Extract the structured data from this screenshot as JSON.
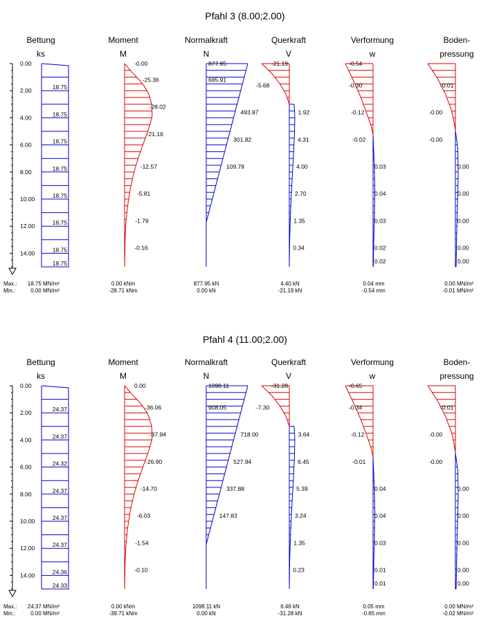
{
  "colors": {
    "red": "#dd0000",
    "blue": "#0000cc",
    "axis": "#000000"
  },
  "depth_ticks": [
    "0.00",
    "2.00",
    "4.00",
    "6.00",
    "8.00",
    "10.00",
    "12.00",
    "14.00"
  ],
  "stat_prefix": {
    "max": "Max.:",
    "min": "Min.:"
  },
  "columns": [
    {
      "id": "bettung",
      "line1": "Bettung",
      "line2": "ks"
    },
    {
      "id": "moment",
      "line1": "Moment",
      "line2": "M"
    },
    {
      "id": "normalkraft",
      "line1": "Normalkraft",
      "line2": "N"
    },
    {
      "id": "querkraft",
      "line1": "Querkraft",
      "line2": "V"
    },
    {
      "id": "verformung",
      "line1": "Verformung",
      "line2": "w"
    },
    {
      "id": "boden",
      "line1": "Boden-",
      "line2": "pressung"
    }
  ],
  "chart_data": [
    {
      "type": "diagram",
      "title": "Pfahl  3 (8.00;2.00)",
      "depth_range": [
        0,
        15
      ],
      "bettung": {
        "labels": [
          [
            "2.00",
            "18.75"
          ],
          [
            "4.00",
            "18.75"
          ],
          [
            "6.00",
            "18.75"
          ],
          [
            "8.00",
            "18.75"
          ],
          [
            "10.00",
            "18.75"
          ],
          [
            "12.00",
            "18.75"
          ],
          [
            "14.00",
            "18.75"
          ],
          [
            "15.00",
            "18.75"
          ]
        ],
        "max": "18.75 MN/m²",
        "min": "0.00 MN/m²"
      },
      "moment": {
        "labels": [
          [
            "0.00",
            "-0.00"
          ],
          [
            "1.20",
            "-25.36"
          ],
          [
            "3.20",
            "-28.02"
          ],
          [
            "5.20",
            "-21.16"
          ],
          [
            "7.60",
            "-12.57"
          ],
          [
            "9.60",
            "-5.81"
          ],
          [
            "11.60",
            "-1.79"
          ],
          [
            "13.60",
            "-0.16"
          ]
        ],
        "max": "0.00 kNm",
        "min": "-28.71 kNm"
      },
      "normalkraft": {
        "labels": [
          [
            "0.00",
            "877.95"
          ],
          [
            "1.20",
            "685.91"
          ],
          [
            "3.60",
            "493.87"
          ],
          [
            "5.60",
            "301.82"
          ],
          [
            "7.60",
            "109.78"
          ]
        ],
        "max": "877.95 kN",
        "min": "0.00 kN"
      },
      "querkraft": {
        "labels": [
          [
            "0.00",
            "-21.19"
          ],
          [
            "1.60",
            "-5.68"
          ],
          [
            "3.60",
            "1.92"
          ],
          [
            "5.60",
            "4.31"
          ],
          [
            "7.60",
            "4.00"
          ],
          [
            "9.60",
            "2.70"
          ],
          [
            "11.60",
            "1.35"
          ],
          [
            "13.60",
            "0.34"
          ]
        ],
        "max": "4.40 kN",
        "min": "-21.19 kN"
      },
      "verformung": {
        "labels": [
          [
            "0.00",
            "-0.54"
          ],
          [
            "1.60",
            "-0.30"
          ],
          [
            "3.60",
            "-0.12"
          ],
          [
            "5.60",
            "-0.02"
          ],
          [
            "7.60",
            "0.03"
          ],
          [
            "9.60",
            "0.04"
          ],
          [
            "11.60",
            "0.03"
          ],
          [
            "13.60",
            "0.02"
          ],
          [
            "14.60",
            "0.02"
          ]
        ],
        "max": "0.04 mm",
        "min": "-0.54 mm"
      },
      "boden": {
        "labels": [
          [
            "1.60",
            "-0.01"
          ],
          [
            "3.60",
            "-0.00"
          ],
          [
            "5.60",
            "-0.00"
          ],
          [
            "7.60",
            "0.00"
          ],
          [
            "9.60",
            "0.00"
          ],
          [
            "11.60",
            "0.00"
          ],
          [
            "13.60",
            "0.00"
          ],
          [
            "14.60",
            "0.00"
          ]
        ],
        "max": "0.00 MN/m²",
        "min": "-0.01 MN/m²"
      }
    },
    {
      "type": "diagram",
      "title": "Pfahl  4 (11.00;2.00)",
      "depth_range": [
        0,
        15
      ],
      "bettung": {
        "labels": [
          [
            "2.00",
            "24.37"
          ],
          [
            "4.00",
            "24.37"
          ],
          [
            "6.00",
            "24.32"
          ],
          [
            "8.00",
            "24.37"
          ],
          [
            "10.00",
            "24.37"
          ],
          [
            "12.00",
            "24.37"
          ],
          [
            "14.00",
            "24.36"
          ],
          [
            "15.00",
            "24.33"
          ]
        ],
        "max": "24.37 MN/m²",
        "min": "0.00 MN/m²"
      },
      "moment": {
        "labels": [
          [
            "0.00",
            "0.00"
          ],
          [
            "1.60",
            "-36.06"
          ],
          [
            "3.60",
            "-37.94"
          ],
          [
            "5.60",
            "-26.90"
          ],
          [
            "7.60",
            "-14.70"
          ],
          [
            "9.60",
            "-6.03"
          ],
          [
            "11.60",
            "-1.54"
          ],
          [
            "13.60",
            "-0.10"
          ]
        ],
        "max": "0.00 kNm",
        "min": "-39.71 kNm"
      },
      "normalkraft": {
        "labels": [
          [
            "0.00",
            "1098.11"
          ],
          [
            "1.60",
            "908.05"
          ],
          [
            "3.60",
            "718.00"
          ],
          [
            "5.60",
            "527.94"
          ],
          [
            "7.60",
            "337.88"
          ],
          [
            "9.60",
            "147.83"
          ]
        ],
        "max": "1098.11 kN",
        "min": "0.00 kN"
      },
      "querkraft": {
        "labels": [
          [
            "0.00",
            "-31.28"
          ],
          [
            "1.60",
            "-7.30"
          ],
          [
            "3.60",
            "3.64"
          ],
          [
            "5.60",
            "6.45"
          ],
          [
            "7.60",
            "5.39"
          ],
          [
            "9.60",
            "3.24"
          ],
          [
            "11.60",
            "1.35"
          ],
          [
            "13.60",
            "0.23"
          ]
        ],
        "max": "6.46 kN",
        "min": "-31.28 kN"
      },
      "verformung": {
        "labels": [
          [
            "0.00",
            "-0.65"
          ],
          [
            "1.60",
            "-0.34"
          ],
          [
            "3.60",
            "-0.12"
          ],
          [
            "5.60",
            "-0.01"
          ],
          [
            "7.60",
            "0.04"
          ],
          [
            "9.60",
            "0.04"
          ],
          [
            "11.60",
            "0.03"
          ],
          [
            "13.60",
            "0.01"
          ],
          [
            "14.60",
            "0.01"
          ]
        ],
        "max": "0.05 mm",
        "min": "-0.65 mm"
      },
      "boden": {
        "labels": [
          [
            "1.60",
            "-0.01"
          ],
          [
            "3.60",
            "-0.00"
          ],
          [
            "5.60",
            "-0.00"
          ],
          [
            "7.60",
            "0.00"
          ],
          [
            "9.60",
            "0.00"
          ],
          [
            "11.60",
            "0.00"
          ],
          [
            "13.60",
            "0.00"
          ],
          [
            "14.60",
            "0.00"
          ]
        ],
        "max": "0.00 MN/m²",
        "min": "-0.02 MN/m²"
      }
    }
  ]
}
